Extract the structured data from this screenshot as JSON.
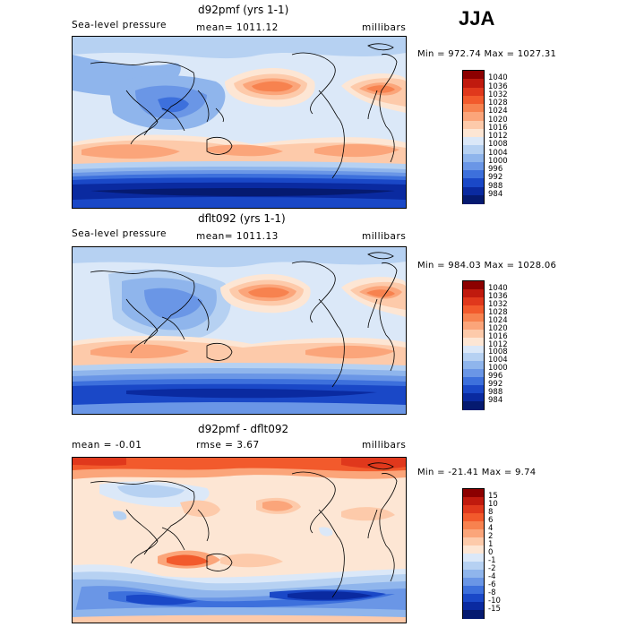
{
  "season": "JJA",
  "panels": [
    {
      "title": "d92pmf (yrs 1-1)",
      "left": "Sea-level pressure",
      "center": "mean= 1011.12",
      "right": "millibars",
      "minmax": "Min = 972.74 Max = 1027.31",
      "levels": [
        "1040",
        "1036",
        "1032",
        "1028",
        "1024",
        "1020",
        "1016",
        "1012",
        "1008",
        "1004",
        "1000",
        "996",
        "992",
        "988",
        "984"
      ],
      "colors": [
        "#8c0000",
        "#c01a0e",
        "#e0381c",
        "#f25a2c",
        "#f7824f",
        "#fba57a",
        "#fdcaaa",
        "#fde6d4",
        "#dbe8f8",
        "#b6d1f2",
        "#8fb5ec",
        "#6a96e6",
        "#3d70dc",
        "#1a48c7",
        "#0a2aa0",
        "#051a70"
      ]
    },
    {
      "title": "dflt092 (yrs 1-1)",
      "left": "Sea-level pressure",
      "center": "mean= 1011.13",
      "right": "millibars",
      "minmax": "Min = 984.03 Max = 1028.06",
      "levels": [
        "1040",
        "1036",
        "1032",
        "1028",
        "1024",
        "1020",
        "1016",
        "1012",
        "1008",
        "1004",
        "1000",
        "996",
        "992",
        "988",
        "984"
      ],
      "colors": [
        "#8c0000",
        "#c01a0e",
        "#e0381c",
        "#f25a2c",
        "#f7824f",
        "#fba57a",
        "#fdcaaa",
        "#fde6d4",
        "#dbe8f8",
        "#b6d1f2",
        "#8fb5ec",
        "#6a96e6",
        "#3d70dc",
        "#1a48c7",
        "#0a2aa0",
        "#051a70"
      ]
    },
    {
      "title": "d92pmf - dflt092",
      "left": "mean =   -0.01",
      "center": "rmse =    3.67",
      "right": "millibars",
      "minmax": "Min = -21.41 Max =    9.74",
      "levels": [
        "15",
        "10",
        "8",
        "6",
        "4",
        "2",
        "1",
        "0",
        "-1",
        "-2",
        "-4",
        "-6",
        "-8",
        "-10",
        "-15"
      ],
      "colors": [
        "#8c0000",
        "#c01a0e",
        "#e0381c",
        "#f25a2c",
        "#f7824f",
        "#fba57a",
        "#fdcaaa",
        "#fde6d4",
        "#dbe8f8",
        "#b6d1f2",
        "#8fb5ec",
        "#6a96e6",
        "#3d70dc",
        "#1a48c7",
        "#0a2aa0",
        "#051a70"
      ]
    }
  ]
}
